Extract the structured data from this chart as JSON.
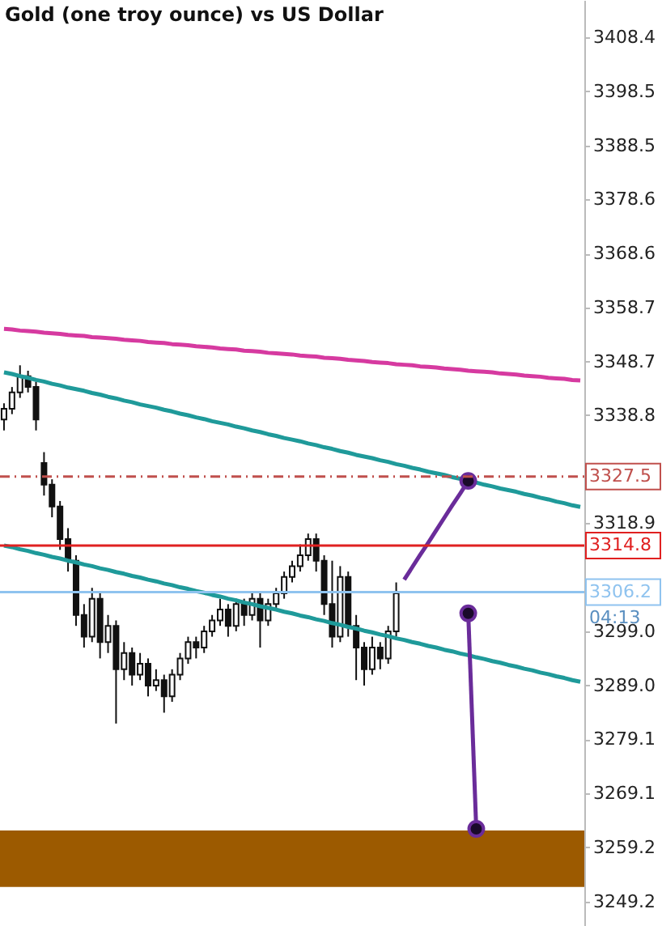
{
  "chart_data": {
    "type": "candlestick",
    "title": "Gold (one troy ounce) vs US Dollar",
    "color": "#111111",
    "categories": [
      null,
      null,
      null,
      null,
      null,
      null,
      null,
      null,
      null,
      null,
      null,
      null,
      null,
      null,
      null,
      null,
      null,
      null,
      null,
      null,
      null,
      null,
      null,
      null,
      null,
      null,
      null,
      null,
      null,
      null,
      null,
      null,
      null,
      null,
      null,
      null,
      null,
      null,
      null,
      null,
      null,
      null,
      null,
      null,
      null,
      null,
      null,
      null,
      null,
      null,
      null,
      null,
      null,
      null,
      null,
      null,
      null,
      null,
      null,
      null,
      null,
      null,
      null,
      null,
      null,
      null,
      null,
      null,
      null,
      null,
      null,
      null,
      null
    ],
    "ohlc": [
      [
        3338,
        3341,
        3336,
        3340
      ],
      [
        3340,
        3344,
        3339,
        3343
      ],
      [
        3343,
        3348,
        3342,
        3346
      ],
      [
        3346,
        3347,
        3343,
        3344
      ],
      [
        3344,
        3345,
        3336,
        3338
      ],
      [
        3330,
        3332,
        3324,
        3326
      ],
      [
        3326,
        3327,
        3320,
        3322
      ],
      [
        3322,
        3323,
        3314,
        3316
      ],
      [
        3316,
        3318,
        3310,
        3312
      ],
      [
        3312,
        3313,
        3300,
        3302
      ],
      [
        3302,
        3304,
        3296,
        3298
      ],
      [
        3298,
        3307,
        3297,
        3305
      ],
      [
        3305,
        3306,
        3294,
        3297
      ],
      [
        3297,
        3302,
        3295,
        3300
      ],
      [
        3300,
        3301,
        3282,
        3292
      ],
      [
        3292,
        3297,
        3290,
        3295
      ],
      [
        3295,
        3296,
        3289,
        3291
      ],
      [
        3291,
        3295,
        3290,
        3293
      ],
      [
        3293,
        3294,
        3287,
        3289
      ],
      [
        3289,
        3292,
        3288,
        3290
      ],
      [
        3290,
        3291,
        3284,
        3287
      ],
      [
        3287,
        3292,
        3286,
        3291
      ],
      [
        3291,
        3295,
        3290,
        3294
      ],
      [
        3294,
        3298,
        3293,
        3297
      ],
      [
        3297,
        3298,
        3294,
        3296
      ],
      [
        3296,
        3300,
        3295,
        3299
      ],
      [
        3299,
        3302,
        3298,
        3301
      ],
      [
        3301,
        3305,
        3300,
        3303
      ],
      [
        3303,
        3304,
        3298,
        3300
      ],
      [
        3300,
        3305,
        3299,
        3304
      ],
      [
        3304,
        3305,
        3300,
        3302
      ],
      [
        3302,
        3306,
        3301,
        3305
      ],
      [
        3305,
        3306,
        3296,
        3301
      ],
      [
        3301,
        3305,
        3300,
        3304
      ],
      [
        3304,
        3307,
        3303,
        3306
      ],
      [
        3306,
        3310,
        3305,
        3309
      ],
      [
        3309,
        3312,
        3308,
        3311
      ],
      [
        3311,
        3315,
        3310,
        3313
      ],
      [
        3313,
        3317,
        3312,
        3316
      ],
      [
        3316,
        3317,
        3310,
        3312
      ],
      [
        3312,
        3313,
        3302,
        3304
      ],
      [
        3304,
        3312,
        3296,
        3298
      ],
      [
        3298,
        3311,
        3297,
        3309
      ],
      [
        3309,
        3310,
        3298,
        3300
      ],
      [
        3300,
        3302,
        3290,
        3296
      ],
      [
        3296,
        3297,
        3289,
        3292
      ],
      [
        3292,
        3298,
        3291,
        3296
      ],
      [
        3296,
        3297,
        3292,
        3294
      ],
      [
        3294,
        3300,
        3293,
        3299
      ],
      [
        3299,
        3308,
        3298,
        3306
      ],
      null,
      null,
      null,
      null,
      null,
      null,
      null,
      null,
      null,
      null,
      null,
      null,
      null,
      null,
      null,
      null,
      null,
      null,
      null,
      null,
      null,
      null,
      null
    ],
    "series": [
      {
        "type": "line",
        "color": "#d63aa0",
        "values": [
          3354.7,
          3354.6,
          3354.4,
          3354.3,
          3354.2,
          3354.0,
          3353.9,
          3353.8,
          3353.6,
          3353.5,
          3353.4,
          3353.2,
          3353.1,
          3353.0,
          3352.9,
          3352.7,
          3352.6,
          3352.5,
          3352.3,
          3352.2,
          3352.1,
          3351.9,
          3351.8,
          3351.7,
          3351.5,
          3351.4,
          3351.3,
          3351.1,
          3351.0,
          3350.9,
          3350.7,
          3350.6,
          3350.5,
          3350.3,
          3350.2,
          3350.1,
          3350.0,
          3349.8,
          3349.7,
          3349.6,
          3349.4,
          3349.3,
          3349.2,
          3349.0,
          3348.9,
          3348.8,
          3348.6,
          3348.5,
          3348.4,
          3348.2,
          3348.1,
          3348.0,
          3347.8,
          3347.7,
          3347.6,
          3347.4,
          3347.3,
          3347.2,
          3347.0,
          3346.9,
          3346.8,
          3346.7,
          3346.5,
          3346.4,
          3346.3,
          3346.1,
          3346.0,
          3345.9,
          3345.7,
          3345.6,
          3345.5,
          3345.3,
          3345.2
        ]
      },
      {
        "type": "line",
        "color": "#1f9a9a",
        "values": [
          3346.7,
          3346.4,
          3346.0,
          3345.7,
          3345.3,
          3345.0,
          3344.6,
          3344.3,
          3343.9,
          3343.6,
          3343.3,
          3342.9,
          3342.6,
          3342.2,
          3341.9,
          3341.5,
          3341.2,
          3340.8,
          3340.5,
          3340.2,
          3339.8,
          3339.5,
          3339.1,
          3338.8,
          3338.4,
          3338.1,
          3337.7,
          3337.4,
          3337.1,
          3336.7,
          3336.4,
          3336.0,
          3335.7,
          3335.3,
          3335.0,
          3334.6,
          3334.3,
          3334.0,
          3333.6,
          3333.3,
          3332.9,
          3332.6,
          3332.2,
          3331.9,
          3331.5,
          3331.2,
          3330.9,
          3330.5,
          3330.2,
          3329.8,
          3329.5,
          3329.1,
          3328.8,
          3328.4,
          3328.1,
          3327.8,
          3327.4,
          3327.1,
          3326.7,
          3326.4,
          3326.0,
          3325.7,
          3325.3,
          3325.0,
          3324.7,
          3324.3,
          3324.0,
          3323.6,
          3323.3,
          3322.9,
          3322.6,
          3322.2,
          3321.9
        ]
      },
      {
        "type": "line",
        "color": "#1f9a9a",
        "values": [
          3314.8,
          3314.5,
          3314.1,
          3313.8,
          3313.4,
          3313.1,
          3312.7,
          3312.4,
          3312.0,
          3311.7,
          3311.3,
          3311.0,
          3310.6,
          3310.3,
          3309.9,
          3309.6,
          3309.2,
          3308.9,
          3308.5,
          3308.2,
          3307.8,
          3307.5,
          3307.1,
          3306.8,
          3306.4,
          3306.1,
          3305.7,
          3305.4,
          3305.0,
          3304.7,
          3304.3,
          3304.0,
          3303.6,
          3303.3,
          3303.0,
          3302.6,
          3302.3,
          3301.9,
          3301.6,
          3301.2,
          3300.9,
          3300.5,
          3300.2,
          3299.8,
          3299.5,
          3299.1,
          3298.8,
          3298.4,
          3298.1,
          3297.7,
          3297.4,
          3297.0,
          3296.7,
          3296.3,
          3296.0,
          3295.6,
          3295.3,
          3294.9,
          3294.6,
          3294.2,
          3293.9,
          3293.5,
          3293.2,
          3292.8,
          3292.5,
          3292.1,
          3291.8,
          3291.4,
          3291.1,
          3290.7,
          3290.4,
          3290.0,
          3289.7
        ]
      },
      {
        "type": "line",
        "color": "#6a2c9a",
        "values": [
          null,
          null,
          null,
          null,
          null,
          null,
          null,
          null,
          null,
          null,
          null,
          null,
          null,
          null,
          null,
          null,
          null,
          null,
          null,
          null,
          null,
          null,
          null,
          null,
          null,
          null,
          null,
          null,
          null,
          null,
          null,
          null,
          null,
          null,
          null,
          null,
          null,
          null,
          null,
          null,
          null,
          null,
          null,
          null,
          null,
          null,
          null,
          null,
          null,
          null,
          3308.5,
          3310.8,
          3313.1,
          3315.3,
          3317.6,
          3319.9,
          3322.2,
          3324.4,
          3326.7,
          null,
          null,
          null,
          null,
          null,
          null,
          null,
          null,
          null,
          null,
          null,
          null,
          null,
          null
        ]
      },
      {
        "type": "line",
        "color": "#6a2c9a",
        "values": [
          null,
          null,
          null,
          null,
          null,
          null,
          null,
          null,
          null,
          null,
          null,
          null,
          null,
          null,
          null,
          null,
          null,
          null,
          null,
          null,
          null,
          null,
          null,
          null,
          null,
          null,
          null,
          null,
          null,
          null,
          null,
          null,
          null,
          null,
          null,
          null,
          null,
          null,
          null,
          null,
          null,
          null,
          null,
          null,
          null,
          null,
          null,
          null,
          null,
          null,
          null,
          null,
          null,
          null,
          null,
          null,
          null,
          null,
          3302.3,
          3262.6,
          null,
          null,
          null,
          null,
          null,
          null,
          null,
          null,
          null,
          null,
          null,
          null,
          null
        ]
      },
      {
        "type": "scatter",
        "color": "#1a0a2a",
        "values": [
          null,
          null,
          null,
          null,
          null,
          null,
          null,
          null,
          null,
          null,
          null,
          null,
          null,
          null,
          null,
          null,
          null,
          null,
          null,
          null,
          null,
          null,
          null,
          null,
          null,
          null,
          null,
          null,
          null,
          null,
          null,
          null,
          null,
          null,
          null,
          null,
          null,
          null,
          null,
          null,
          null,
          null,
          null,
          null,
          null,
          null,
          null,
          null,
          null,
          null,
          null,
          null,
          null,
          null,
          null,
          null,
          null,
          null,
          3326.7,
          3262.6,
          null,
          null,
          null,
          null,
          null,
          null,
          null,
          null,
          null,
          null,
          null,
          null,
          null
        ]
      },
      {
        "type": "scatter",
        "color": "#1a0a2a",
        "values": [
          null,
          null,
          null,
          null,
          null,
          null,
          null,
          null,
          null,
          null,
          null,
          null,
          null,
          null,
          null,
          null,
          null,
          null,
          null,
          null,
          null,
          null,
          null,
          null,
          null,
          null,
          null,
          null,
          null,
          null,
          null,
          null,
          null,
          null,
          null,
          null,
          null,
          null,
          null,
          null,
          null,
          null,
          null,
          null,
          null,
          null,
          null,
          null,
          null,
          null,
          null,
          null,
          null,
          null,
          null,
          null,
          null,
          null,
          3302.3,
          null,
          null,
          null,
          null,
          null,
          null,
          null,
          null,
          null,
          null,
          null,
          null,
          null,
          null
        ]
      }
    ],
    "ylim": [
      3244.7,
      3415.3
    ],
    "yticks": [
      3249.2,
      3259.2,
      3269.1,
      3279.1,
      {
        "value": 3289,
        "label": "3289.0"
      },
      {
        "value": 3299,
        "label": "3299.0"
      },
      3318.9,
      3338.8,
      3348.7,
      3358.7,
      3368.6,
      3378.6,
      3388.5,
      3398.5,
      3408.4
    ],
    "ref_lines": [
      {
        "axis": "y",
        "value": 3314.8,
        "label": "3314.8",
        "color": "#e02020",
        "line_style": "solid"
      },
      {
        "axis": "y",
        "value": 3306.2,
        "label": "3306.2",
        "color": "#8fc3ef",
        "line_style": "solid"
      },
      {
        "axis": "y",
        "value": 3327.5,
        "label": "3327.5",
        "color": "#c0504d",
        "line_style": "dashed"
      }
    ],
    "bands": [
      {
        "axis": "y",
        "from": 3251.9,
        "to": 3262.3,
        "color": "#9c5a00"
      }
    ],
    "annotations": [
      "04:13"
    ],
    "tick_labels": "y",
    "grid": false
  }
}
